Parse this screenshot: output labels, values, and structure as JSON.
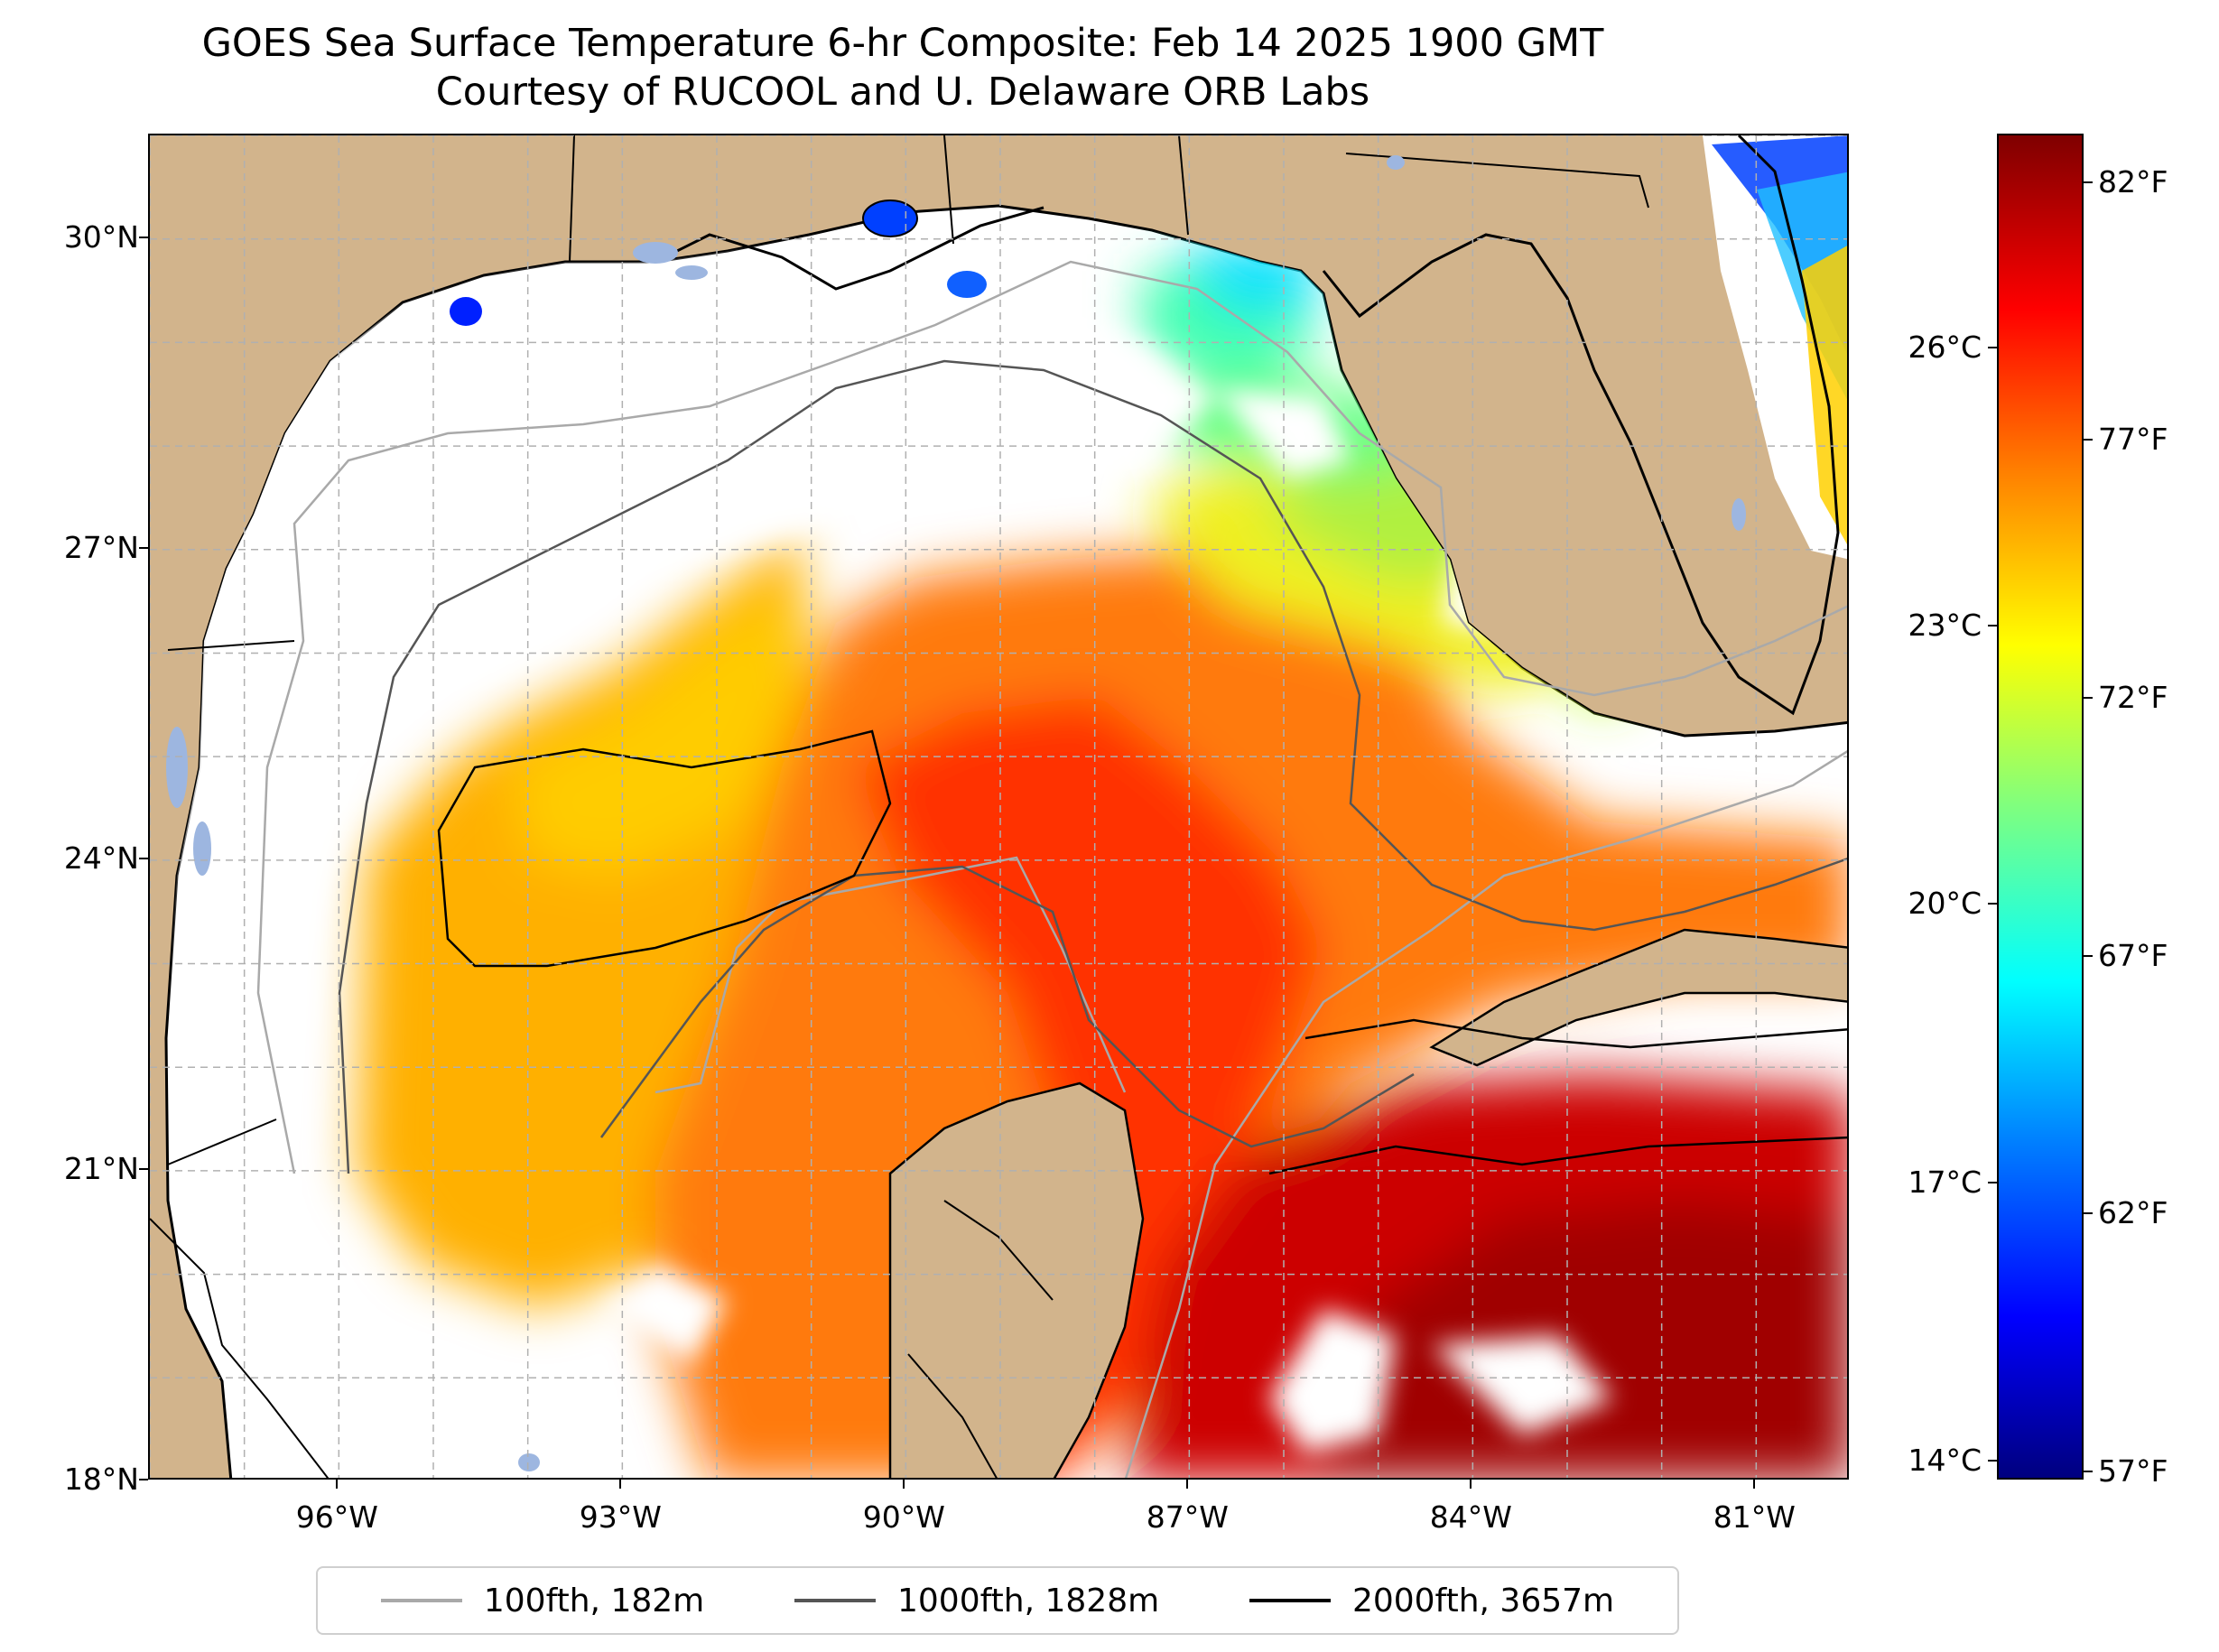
{
  "title": {
    "line1": "GOES Sea Surface Temperature 6-hr Composite: Feb 14 2025 1900 GMT",
    "line2": "Courtesy of RUCOOL and U. Delaware ORB Labs"
  },
  "map": {
    "region": "Gulf of Mexico",
    "lon_range": [
      -98,
      -80
    ],
    "lat_range": [
      18,
      31
    ],
    "lat_ticks": [
      {
        "value": 18,
        "label": "18°N"
      },
      {
        "value": 21,
        "label": "21°N"
      },
      {
        "value": 24,
        "label": "24°N"
      },
      {
        "value": 27,
        "label": "27°N"
      },
      {
        "value": 30,
        "label": "30°N"
      }
    ],
    "lon_ticks": [
      {
        "value": -96,
        "label": "96°W"
      },
      {
        "value": -93,
        "label": "93°W"
      },
      {
        "value": -90,
        "label": "90°W"
      },
      {
        "value": -87,
        "label": "87°W"
      },
      {
        "value": -84,
        "label": "84°W"
      },
      {
        "value": -81,
        "label": "81°W"
      }
    ],
    "colors": {
      "land": "#d2b48c",
      "no_data": "#ffffff",
      "lake": "#9db6e0",
      "grid": "#b0b0b0"
    }
  },
  "colorbar": {
    "colormap": "jet",
    "range_celsius": [
      13.8,
      28.3
    ],
    "celsius_ticks": [
      {
        "value": 14,
        "label": "14°C"
      },
      {
        "value": 17,
        "label": "17°C"
      },
      {
        "value": 20,
        "label": "20°C"
      },
      {
        "value": 23,
        "label": "23°C"
      },
      {
        "value": 26,
        "label": "26°C"
      }
    ],
    "fahrenheit_ticks": [
      {
        "value": 57,
        "label": "57°F"
      },
      {
        "value": 62,
        "label": "62°F"
      },
      {
        "value": 67,
        "label": "67°F"
      },
      {
        "value": 72,
        "label": "72°F"
      },
      {
        "value": 77,
        "label": "77°F"
      },
      {
        "value": 82,
        "label": "82°F"
      }
    ]
  },
  "legend": {
    "items": [
      {
        "label": "100fth, 182m",
        "color": "#a9a9a9"
      },
      {
        "label": "1000fth, 1828m",
        "color": "#555555"
      },
      {
        "label": "2000fth, 3657m",
        "color": "#000000"
      }
    ]
  }
}
